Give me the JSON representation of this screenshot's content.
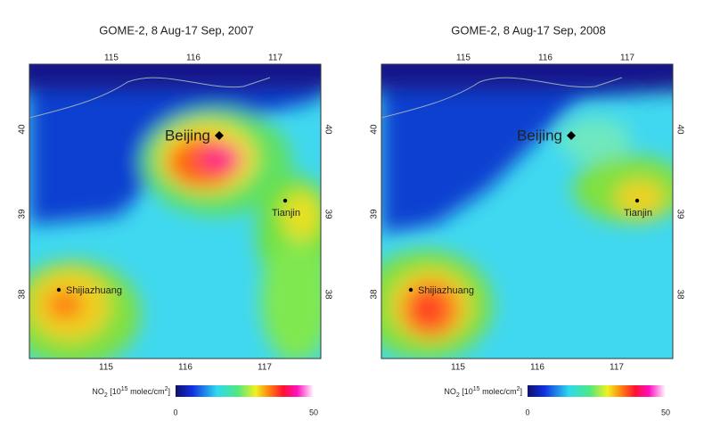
{
  "colorbar_label": {
    "a": "NO",
    "b": "2",
    "c": " [10",
    "d": "15",
    "e": " molec/cm",
    "f": "2",
    "g": "]"
  },
  "panels": [
    {
      "title": "GOME-2,  8 Aug-17 Sep,  2007",
      "lon_ticks": [
        115,
        116,
        117
      ],
      "lat_ticks": [
        40,
        39,
        38
      ],
      "cities": [
        "Beijing",
        "Tianjin",
        "Shijiazhuang"
      ],
      "colorbar_ticks": [
        0,
        50
      ]
    },
    {
      "title": "GOME-2,  8 Aug-17 Sep,  2008",
      "lon_ticks": [
        115,
        116,
        117
      ],
      "lat_ticks": [
        40,
        39,
        38
      ],
      "cities": [
        "Beijing",
        "Tianjin",
        "Shijiazhuang"
      ],
      "colorbar_ticks": [
        0,
        50
      ]
    }
  ]
}
